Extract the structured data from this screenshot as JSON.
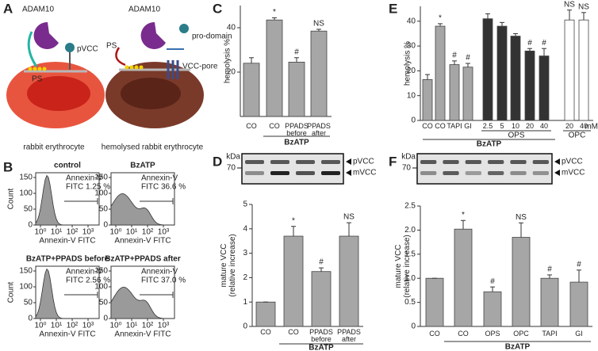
{
  "panel_a": {
    "letter": "A",
    "left": {
      "enzyme": "ADAM10",
      "toxin": "pVCC",
      "lipid": "PS",
      "caption": "rabbit erythrocyte"
    },
    "right": {
      "enzyme": "ADAM10",
      "lipid": "PS",
      "released": "pro-domain",
      "pore": "VCC-pore",
      "caption": "hemolysed rabbit erythrocyte"
    }
  },
  "panel_b": {
    "letter": "B",
    "ylabel": "Count",
    "xlabel": "Annexin-V FITC",
    "ylim": [
      0,
      165
    ],
    "yticks": [
      0,
      50,
      100,
      150
    ],
    "xscale": "log",
    "xlim": [
      0.5,
      5000
    ],
    "xticks": [
      {
        "value": 1,
        "label": "10⁰"
      },
      {
        "value": 10,
        "label": "10¹"
      },
      {
        "value": 100,
        "label": "10²"
      },
      {
        "value": 1000,
        "label": "10³"
      }
    ],
    "plots": [
      {
        "title": "control",
        "annotation": [
          "Annexin-V",
          "FITC 1.25 %"
        ]
      },
      {
        "title": "BzATP",
        "annotation": [
          "Annexin-V",
          "FITC 36.6 %"
        ]
      },
      {
        "title": "BzATP+PPADS before",
        "annotation": [
          "Annexin-V",
          "FITC 2.56 %"
        ]
      },
      {
        "title": "BzATP+PPADS after",
        "annotation": [
          "Annexin-V",
          "FITC 37.0 %"
        ]
      }
    ]
  },
  "chart_data": [
    {
      "type": "bar",
      "panel": "C",
      "ylabel": [
        "hemolysis %"
      ],
      "categories": [
        "CO",
        "CO",
        "PPADS before",
        "PPADS after"
      ],
      "series": [
        {
          "values": [
            24,
            43.5,
            24.5,
            38.5
          ],
          "errors": [
            2.5,
            1,
            2,
            0.8
          ],
          "color": "#a6a6a6"
        }
      ],
      "annotations": [
        null,
        "*",
        "#",
        "NS"
      ],
      "ylim": [
        0,
        50
      ],
      "yticks": [
        20,
        40
      ],
      "group_labels": [
        "BzATP"
      ]
    },
    {
      "type": "bar",
      "panel": "D",
      "ylabel": [
        "mature VCC",
        "(relative increase)"
      ],
      "categories": [
        "CO",
        "CO",
        "PPADS before",
        "PPADS after"
      ],
      "series": [
        {
          "values": [
            1,
            3.7,
            2.25,
            3.7
          ],
          "errors": [
            0,
            0.4,
            0.15,
            0.55
          ],
          "color": "#a6a6a6"
        }
      ],
      "annotations": [
        null,
        "*",
        "#",
        "NS"
      ],
      "ylim": [
        0,
        5
      ],
      "yticks": [
        0,
        1,
        2,
        3,
        4,
        5
      ],
      "group_labels": [
        "BzATP"
      ],
      "blot": {
        "unit": "kDa",
        "marker": "70",
        "bands": [
          "pVCC",
          "mVCC"
        ]
      }
    },
    {
      "type": "bar",
      "panel": "E",
      "ylabel": [
        "hemolysis %"
      ],
      "categories": [
        "CO",
        "CO",
        "TAPI",
        "GI",
        "2.5",
        "5",
        "10",
        "20",
        "40",
        "20",
        "40"
      ],
      "series": [
        {
          "values": [
            16.5,
            38,
            22.5,
            21.5,
            41,
            38,
            34,
            28,
            26,
            40.5,
            40.5
          ],
          "errors": [
            2,
            1,
            1.5,
            1.5,
            2,
            1.5,
            1,
            1,
            3,
            4,
            3
          ],
          "colors": [
            "#a6a6a6",
            "#a6a6a6",
            "#a6a6a6",
            "#a6a6a6",
            "#333333",
            "#333333",
            "#333333",
            "#333333",
            "#333333",
            "#ffffff",
            "#ffffff"
          ]
        }
      ],
      "annotations": [
        null,
        "*",
        "#",
        "#",
        null,
        null,
        null,
        "#",
        "#",
        "NS",
        "NS"
      ],
      "ylim": [
        0,
        46
      ],
      "yticks": [
        0,
        10,
        20,
        30,
        40
      ],
      "group_labels": [
        "OPS",
        "OPC",
        "BzATP"
      ],
      "unit": "mM"
    },
    {
      "type": "bar",
      "panel": "F",
      "ylabel": [
        "mature VCC",
        "(relative increase)"
      ],
      "categories": [
        "CO",
        "CO",
        "OPS",
        "OPC",
        "TAPI",
        "GI"
      ],
      "series": [
        {
          "values": [
            1,
            2.02,
            0.72,
            1.85,
            1,
            0.92
          ],
          "errors": [
            0,
            0.18,
            0.1,
            0.3,
            0.07,
            0.25
          ],
          "color": "#a6a6a6"
        }
      ],
      "annotations": [
        null,
        "*",
        "#",
        "NS",
        "#",
        "#"
      ],
      "ylim": [
        0,
        2.5
      ],
      "yticks": [
        0,
        0.5,
        {
          "value": 1,
          "label": "1.0"
        },
        1.5,
        {
          "value": 2,
          "label": "2.0"
        },
        2.5
      ],
      "group_labels": [
        "BzATP"
      ],
      "blot": {
        "unit": "kDa",
        "marker": "70",
        "bands": [
          "pVCC",
          "mVCC"
        ]
      }
    }
  ]
}
